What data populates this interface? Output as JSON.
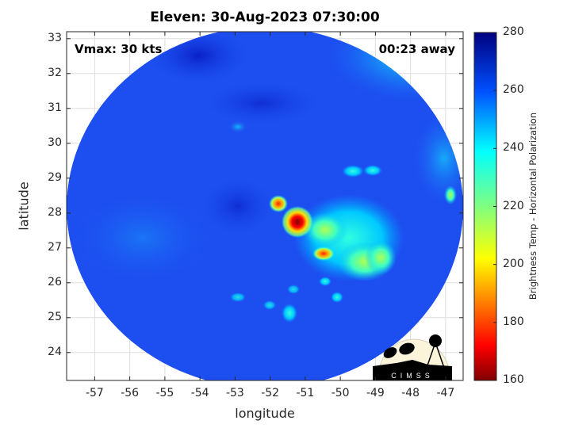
{
  "title": "Eleven: 30-Aug-2023 07:30:00",
  "annotations": {
    "vmax": "Vmax: 30 kts",
    "time_away": "00:23 away"
  },
  "chart_data": {
    "type": "heatmap",
    "title": "Eleven: 30-Aug-2023 07:30:00",
    "xlabel": "longitude",
    "ylabel": "latitude",
    "xticks": [
      "-57",
      "-56",
      "-55",
      "-54",
      "-53",
      "-52",
      "-51",
      "-50",
      "-49",
      "-48",
      "-47"
    ],
    "yticks": [
      "33",
      "32",
      "31",
      "30",
      "29",
      "28",
      "27",
      "26",
      "25",
      "24"
    ],
    "xlim": [
      -57.8,
      -46.5
    ],
    "ylim": [
      23.2,
      33.2
    ],
    "grid": true,
    "colorbar": {
      "label": "Brightness Temp - Horizontal Polarization",
      "ticks": [
        "280",
        "260",
        "240",
        "220",
        "200",
        "180",
        "160"
      ],
      "range": [
        160,
        280
      ],
      "colormap": "jet"
    },
    "features": [
      {
        "lon": -51.2,
        "lat": 27.7,
        "value": 165
      },
      {
        "lon": -51.8,
        "lat": 28.2,
        "value": 180
      },
      {
        "lon": -50.5,
        "lat": 26.8,
        "value": 195
      }
    ]
  },
  "logo": {
    "text": "CIMSS"
  },
  "colors": {
    "background_disk": "#1f4ff0",
    "core": "#a00000"
  }
}
